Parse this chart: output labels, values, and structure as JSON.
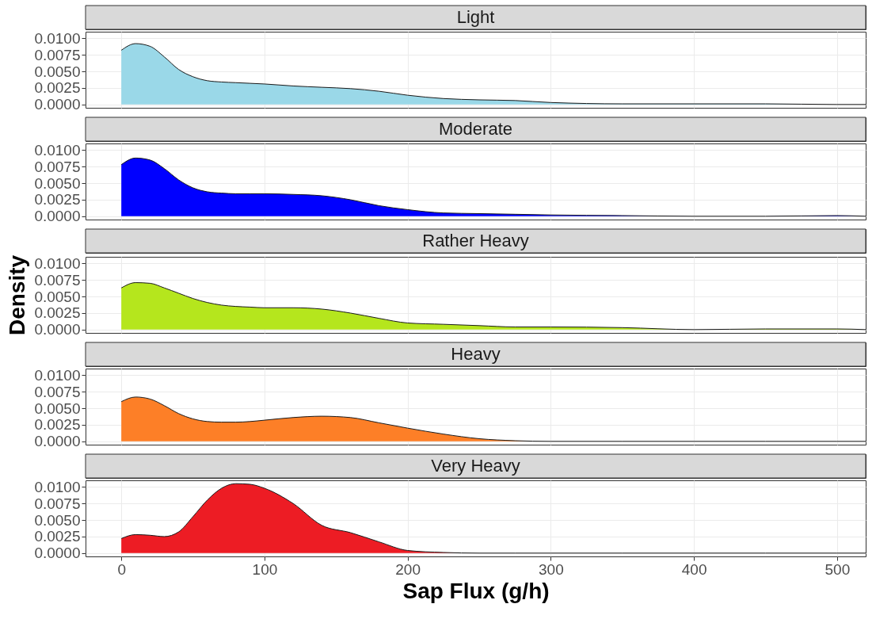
{
  "chart_data": [
    {
      "type": "area",
      "title": "Light",
      "x": [
        0,
        10,
        20,
        30,
        40,
        50,
        60,
        70,
        80,
        90,
        100,
        120,
        140,
        160,
        180,
        200,
        225,
        250,
        275,
        300,
        350,
        400,
        450,
        500,
        520
      ],
      "xlim": [
        -25,
        520
      ],
      "xticks": [
        0,
        100,
        200,
        300,
        400,
        500
      ],
      "ylim": [
        -0.0005,
        0.011
      ],
      "yticks": [
        {
          "value": 0,
          "label": "0.0000"
        },
        {
          "value": 0.0025,
          "label": "0.0025"
        },
        {
          "value": 0.005,
          "label": "0.0050"
        },
        {
          "value": 0.0075,
          "label": "0.0075"
        },
        {
          "value": 0.01,
          "label": "0.0100"
        }
      ],
      "grid": true,
      "tick_labels": "y",
      "series": [
        {
          "color": "#9ad8e8",
          "values": [
            0.0082,
            0.0092,
            0.0088,
            0.0072,
            0.0053,
            0.0042,
            0.0036,
            0.0034,
            0.0033,
            0.0032,
            0.0031,
            0.0028,
            0.0026,
            0.0024,
            0.002,
            0.0014,
            0.0009,
            0.0007,
            0.0006,
            0.0003,
            0.0001,
            0.0001,
            0.0001,
            0,
            0
          ]
        }
      ]
    },
    {
      "type": "area",
      "title": "Moderate",
      "x": [
        0,
        10,
        20,
        30,
        40,
        50,
        60,
        70,
        80,
        90,
        100,
        120,
        140,
        160,
        180,
        200,
        225,
        250,
        275,
        300,
        350,
        400,
        450,
        500,
        520
      ],
      "xlim": [
        -25,
        520
      ],
      "xticks": [
        0,
        100,
        200,
        300,
        400,
        500
      ],
      "ylim": [
        -0.0005,
        0.011
      ],
      "yticks": [
        {
          "value": 0,
          "label": "0.0000"
        },
        {
          "value": 0.0025,
          "label": "0.0025"
        },
        {
          "value": 0.005,
          "label": "0.0050"
        },
        {
          "value": 0.0075,
          "label": "0.0075"
        },
        {
          "value": 0.01,
          "label": "0.0100"
        }
      ],
      "grid": true,
      "tick_labels": "y",
      "series": [
        {
          "color": "#0000ff",
          "values": [
            0.0078,
            0.0088,
            0.0085,
            0.0072,
            0.0055,
            0.0043,
            0.0037,
            0.0035,
            0.0034,
            0.0034,
            0.0034,
            0.0033,
            0.0031,
            0.0025,
            0.0016,
            0.001,
            0.0005,
            0.0004,
            0.0003,
            0.0002,
            0.0001,
            0,
            0,
            0.0001,
            0
          ]
        }
      ]
    },
    {
      "type": "area",
      "title": "Rather Heavy",
      "ylabel": "Density",
      "x": [
        0,
        10,
        20,
        30,
        40,
        50,
        60,
        70,
        80,
        90,
        100,
        120,
        140,
        160,
        180,
        200,
        225,
        250,
        275,
        300,
        350,
        400,
        450,
        500,
        520
      ],
      "xlim": [
        -25,
        520
      ],
      "xticks": [
        0,
        100,
        200,
        300,
        400,
        500
      ],
      "ylim": [
        -0.0005,
        0.011
      ],
      "yticks": [
        {
          "value": 0,
          "label": "0.0000"
        },
        {
          "value": 0.0025,
          "label": "0.0025"
        },
        {
          "value": 0.005,
          "label": "0.0050"
        },
        {
          "value": 0.0075,
          "label": "0.0075"
        },
        {
          "value": 0.01,
          "label": "0.0100"
        }
      ],
      "grid": true,
      "tick_labels": "y",
      "series": [
        {
          "color": "#b5e61d",
          "values": [
            0.0063,
            0.0071,
            0.007,
            0.0063,
            0.0055,
            0.0047,
            0.0041,
            0.0037,
            0.0035,
            0.0034,
            0.0033,
            0.0033,
            0.0031,
            0.0025,
            0.0017,
            0.001,
            0.0008,
            0.0006,
            0.0004,
            0.0004,
            0.0003,
            0,
            0.0001,
            0.0001,
            0
          ]
        }
      ]
    },
    {
      "type": "area",
      "title": "Heavy",
      "x": [
        0,
        10,
        20,
        30,
        40,
        50,
        60,
        70,
        80,
        90,
        100,
        120,
        140,
        160,
        180,
        200,
        225,
        250,
        275,
        300,
        350,
        400,
        450,
        500,
        520
      ],
      "xlim": [
        -25,
        520
      ],
      "xticks": [
        0,
        100,
        200,
        300,
        400,
        500
      ],
      "ylim": [
        -0.0005,
        0.011
      ],
      "yticks": [
        {
          "value": 0,
          "label": "0.0000"
        },
        {
          "value": 0.0025,
          "label": "0.0025"
        },
        {
          "value": 0.005,
          "label": "0.0050"
        },
        {
          "value": 0.0075,
          "label": "0.0075"
        },
        {
          "value": 0.01,
          "label": "0.0100"
        }
      ],
      "grid": true,
      "tick_labels": "y",
      "series": [
        {
          "color": "#fd7f27",
          "values": [
            0.006,
            0.0067,
            0.0064,
            0.0054,
            0.0042,
            0.0034,
            0.003,
            0.0029,
            0.0029,
            0.003,
            0.0032,
            0.0036,
            0.0038,
            0.0036,
            0.0028,
            0.002,
            0.0011,
            0.0004,
            0.0001,
            0,
            0,
            0,
            0,
            0,
            0
          ]
        }
      ]
    },
    {
      "type": "area",
      "title": "Very Heavy",
      "xlabel": "Sap Flux (g/h)",
      "x": [
        0,
        10,
        20,
        30,
        40,
        50,
        60,
        70,
        80,
        90,
        100,
        120,
        140,
        160,
        180,
        200,
        225,
        250,
        275,
        300,
        350,
        400,
        450,
        500,
        520
      ],
      "xlim": [
        -25,
        520
      ],
      "xticks": [
        0,
        100,
        200,
        300,
        400,
        500
      ],
      "ylim": [
        -0.0005,
        0.011
      ],
      "yticks": [
        {
          "value": 0,
          "label": "0.0000"
        },
        {
          "value": 0.0025,
          "label": "0.0025"
        },
        {
          "value": 0.005,
          "label": "0.0050"
        },
        {
          "value": 0.0075,
          "label": "0.0075"
        },
        {
          "value": 0.01,
          "label": "0.0100"
        }
      ],
      "grid": true,
      "series": [
        {
          "color": "#ed1c24",
          "values": [
            0.0022,
            0.0028,
            0.0027,
            0.0025,
            0.0032,
            0.0055,
            0.008,
            0.0098,
            0.0105,
            0.0104,
            0.0098,
            0.0075,
            0.0042,
            0.0031,
            0.0017,
            0.0004,
            0.0001,
            0,
            0,
            0,
            0,
            0,
            0,
            0,
            0
          ]
        }
      ]
    }
  ]
}
